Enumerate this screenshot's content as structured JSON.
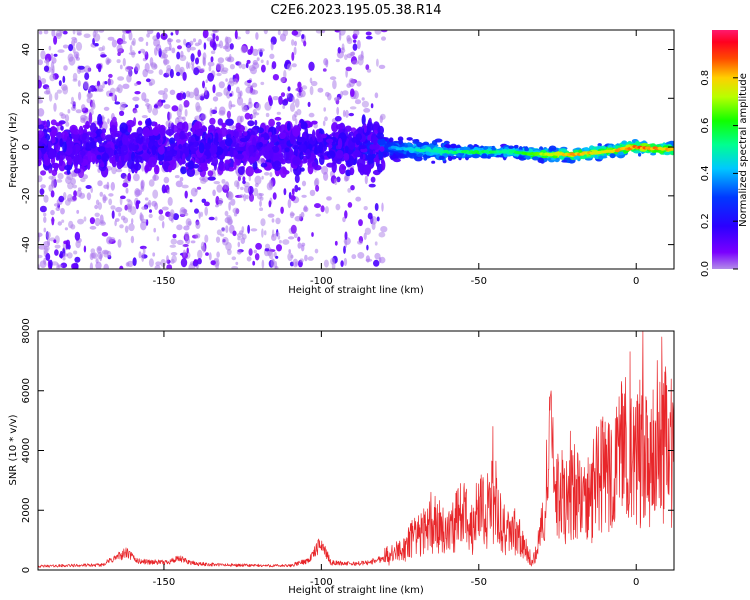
{
  "title": "C2E6.2023.195.05.38.R14",
  "chart_data": [
    {
      "type": "heatmap",
      "xlabel": "Height of straight line (km)",
      "ylabel": "Frequency (Hz)",
      "xlim": [
        -190,
        12
      ],
      "ylim": [
        -50,
        48
      ],
      "x_ticks": [
        -150,
        -100,
        -50,
        0
      ],
      "y_ticks": [
        -40,
        -20,
        0,
        20,
        40
      ],
      "colorbar": {
        "label": "Normalized spectral amplitude",
        "range": [
          0,
          1
        ],
        "ticks": [
          0.0,
          0.2,
          0.4,
          0.6,
          0.8
        ],
        "colormap": "rainbow (purple - blue - cyan - green - yellow - orange - red - magenta)"
      },
      "ridge": {
        "description": "Concentrated high-amplitude band near 0 Hz; noisy scattered power below about -80 km",
        "x": [
          -190,
          -160,
          -140,
          -120,
          -100,
          -90,
          -80,
          -70,
          -60,
          -50,
          -40,
          -30,
          -20,
          -10,
          0,
          10
        ],
        "frequency": [
          0,
          0,
          0,
          0,
          0,
          0,
          0,
          -1,
          -2,
          -2,
          -2,
          -3,
          -3,
          -2,
          0,
          -1
        ],
        "amplitude": [
          0.15,
          0.2,
          0.18,
          0.15,
          0.2,
          0.25,
          0.35,
          0.5,
          0.55,
          0.6,
          0.55,
          0.75,
          0.85,
          0.8,
          0.9,
          0.85
        ]
      },
      "grid": false
    },
    {
      "type": "line",
      "xlabel": "Height of straight line (km)",
      "ylabel": "SNR (10 * v/v)",
      "xlim": [
        -190,
        12
      ],
      "ylim": [
        0,
        8000
      ],
      "x_ticks": [
        -150,
        -100,
        -50,
        0
      ],
      "y_ticks": [
        0,
        2000,
        4000,
        6000,
        8000
      ],
      "color": "#e8262a",
      "series": [
        {
          "x": [
            -190,
            -180,
            -170,
            -162,
            -158,
            -150,
            -145,
            -140,
            -130,
            -120,
            -110,
            -104,
            -100,
            -97,
            -90,
            -85,
            -80,
            -75,
            -70,
            -65,
            -60,
            -55,
            -52,
            -50,
            -48,
            -45,
            -42,
            -38,
            -35,
            -33,
            -30,
            -28,
            -27,
            -26,
            -24,
            -22,
            -20,
            -18,
            -16,
            -14,
            -12,
            -10,
            -8,
            -6,
            -4,
            -2,
            0,
            2,
            4,
            6,
            8,
            10,
            12
          ],
          "y": [
            150,
            180,
            200,
            700,
            350,
            300,
            450,
            250,
            200,
            180,
            170,
            400,
            1100,
            300,
            250,
            300,
            500,
            900,
            1500,
            2200,
            1800,
            2600,
            2000,
            3200,
            2400,
            3400,
            2000,
            1700,
            900,
            300,
            2000,
            3200,
            7600,
            3000,
            3500,
            3100,
            3600,
            3400,
            3000,
            3600,
            4200,
            4500,
            5000,
            4700,
            5600,
            4900,
            5400,
            5700,
            5300,
            6700,
            5200,
            6400,
            4500
          ]
        }
      ],
      "grid": false
    }
  ]
}
